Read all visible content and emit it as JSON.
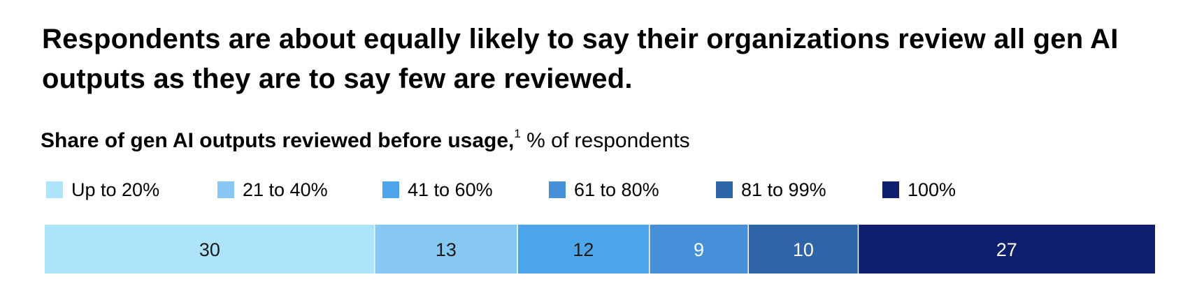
{
  "headline": "Respondents are about equally likely to say their organizations review all gen AI outputs as they are to say few are reviewed.",
  "subtitle": {
    "bold_text": "Share of gen AI outputs reviewed before usage,",
    "footnote_marker": "1",
    "unit_text": "% of respondents"
  },
  "chart_data": {
    "type": "bar",
    "orientation": "horizontal-stacked",
    "title": "Share of gen AI outputs reviewed before usage,",
    "unit": "% of respondents",
    "categories": [
      "Up to 20%",
      "21 to 40%",
      "41 to 60%",
      "61 to 80%",
      "81 to 99%",
      "100%"
    ],
    "values": [
      30,
      13,
      12,
      9,
      10,
      27
    ],
    "labels": [
      "30",
      "13",
      "12",
      "9",
      "10",
      "27"
    ],
    "colors": [
      "#ADE3FB",
      "#86C8F2",
      "#4DA6EC",
      "#4590D8",
      "#2D65A8",
      "#0F1F6E"
    ],
    "label_colors": [
      "#1A1A1A",
      "#1A1A1A",
      "#1A1A1A",
      "#FFFFFF",
      "#FFFFFF",
      "#FFFFFF"
    ],
    "legend_placement": "top"
  }
}
